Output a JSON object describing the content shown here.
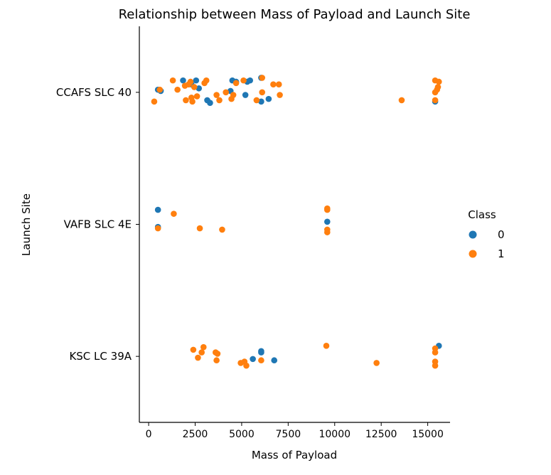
{
  "chart_data": {
    "type": "scatter",
    "title": "Relationship between Mass of Payload and Launch Site",
    "xlabel": "Mass of Payload",
    "ylabel": "Launch Site",
    "xlim": [
      -500,
      16200
    ],
    "x_ticks": [
      0,
      2500,
      5000,
      7500,
      10000,
      12500,
      15000
    ],
    "categories": [
      "CCAFS SLC 40",
      "VAFB SLC 4E",
      "KSC LC 39A"
    ],
    "grid": false,
    "legend": {
      "title": "Class",
      "placement": "center-right",
      "entries": [
        {
          "label": "0",
          "color": "#1f77b4"
        },
        {
          "label": "1",
          "color": "#ff7f0e"
        }
      ]
    },
    "series": [
      {
        "name": "0",
        "color": "#1f77b4",
        "points": [
          {
            "x": 500,
            "site": "CCAFS SLC 40",
            "jitter": 0.02
          },
          {
            "x": 650,
            "site": "CCAFS SLC 40",
            "jitter": 0.01
          },
          {
            "x": 1850,
            "site": "CCAFS SLC 40",
            "jitter": 0.09
          },
          {
            "x": 2300,
            "site": "CCAFS SLC 40",
            "jitter": 0.06
          },
          {
            "x": 2550,
            "site": "CCAFS SLC 40",
            "jitter": 0.09
          },
          {
            "x": 2700,
            "site": "CCAFS SLC 40",
            "jitter": 0.03
          },
          {
            "x": 3150,
            "site": "CCAFS SLC 40",
            "jitter": -0.06
          },
          {
            "x": 3300,
            "site": "CCAFS SLC 40",
            "jitter": -0.08
          },
          {
            "x": 4400,
            "site": "CCAFS SLC 40",
            "jitter": 0.01
          },
          {
            "x": 4500,
            "site": "CCAFS SLC 40",
            "jitter": 0.09
          },
          {
            "x": 4700,
            "site": "CCAFS SLC 40",
            "jitter": 0.08
          },
          {
            "x": 5200,
            "site": "CCAFS SLC 40",
            "jitter": -0.02
          },
          {
            "x": 5300,
            "site": "CCAFS SLC 40",
            "jitter": 0.08
          },
          {
            "x": 5450,
            "site": "CCAFS SLC 40",
            "jitter": 0.09
          },
          {
            "x": 6050,
            "site": "CCAFS SLC 40",
            "jitter": 0.11
          },
          {
            "x": 6050,
            "site": "CCAFS SLC 40",
            "jitter": -0.07
          },
          {
            "x": 6450,
            "site": "CCAFS SLC 40",
            "jitter": -0.05
          },
          {
            "x": 15400,
            "site": "CCAFS SLC 40",
            "jitter": -0.07
          },
          {
            "x": 500,
            "site": "VAFB SLC 4E",
            "jitter": 0.11
          },
          {
            "x": 500,
            "site": "VAFB SLC 4E",
            "jitter": -0.02
          },
          {
            "x": 9600,
            "site": "VAFB SLC 4E",
            "jitter": 0.02
          },
          {
            "x": 5600,
            "site": "KSC LC 39A",
            "jitter": -0.02
          },
          {
            "x": 6050,
            "site": "KSC LC 39A",
            "jitter": 0.04
          },
          {
            "x": 6050,
            "site": "KSC LC 39A",
            "jitter": 0.03
          },
          {
            "x": 6750,
            "site": "KSC LC 39A",
            "jitter": -0.03
          },
          {
            "x": 15600,
            "site": "KSC LC 39A",
            "jitter": 0.08
          }
        ]
      },
      {
        "name": "1",
        "color": "#ff7f0e",
        "points": [
          {
            "x": 300,
            "site": "CCAFS SLC 40",
            "jitter": -0.07
          },
          {
            "x": 600,
            "site": "CCAFS SLC 40",
            "jitter": 0.02
          },
          {
            "x": 1300,
            "site": "CCAFS SLC 40",
            "jitter": 0.09
          },
          {
            "x": 1550,
            "site": "CCAFS SLC 40",
            "jitter": 0.02
          },
          {
            "x": 1950,
            "site": "CCAFS SLC 40",
            "jitter": 0.05
          },
          {
            "x": 2000,
            "site": "CCAFS SLC 40",
            "jitter": -0.06
          },
          {
            "x": 2150,
            "site": "CCAFS SLC 40",
            "jitter": 0.06
          },
          {
            "x": 2250,
            "site": "CCAFS SLC 40",
            "jitter": 0.08
          },
          {
            "x": 2300,
            "site": "CCAFS SLC 40",
            "jitter": -0.04
          },
          {
            "x": 2350,
            "site": "CCAFS SLC 40",
            "jitter": -0.07
          },
          {
            "x": 2450,
            "site": "CCAFS SLC 40",
            "jitter": 0.04
          },
          {
            "x": 2600,
            "site": "CCAFS SLC 40",
            "jitter": -0.03
          },
          {
            "x": 3000,
            "site": "CCAFS SLC 40",
            "jitter": 0.07
          },
          {
            "x": 3100,
            "site": "CCAFS SLC 40",
            "jitter": 0.09
          },
          {
            "x": 3650,
            "site": "CCAFS SLC 40",
            "jitter": -0.02
          },
          {
            "x": 3800,
            "site": "CCAFS SLC 40",
            "jitter": -0.06
          },
          {
            "x": 4150,
            "site": "CCAFS SLC 40",
            "jitter": 0.0
          },
          {
            "x": 4450,
            "site": "CCAFS SLC 40",
            "jitter": -0.05
          },
          {
            "x": 4550,
            "site": "CCAFS SLC 40",
            "jitter": -0.02
          },
          {
            "x": 4700,
            "site": "CCAFS SLC 40",
            "jitter": 0.07
          },
          {
            "x": 5100,
            "site": "CCAFS SLC 40",
            "jitter": 0.09
          },
          {
            "x": 5800,
            "site": "CCAFS SLC 40",
            "jitter": -0.06
          },
          {
            "x": 6100,
            "site": "CCAFS SLC 40",
            "jitter": 0.0
          },
          {
            "x": 6100,
            "site": "CCAFS SLC 40",
            "jitter": 0.11
          },
          {
            "x": 6700,
            "site": "CCAFS SLC 40",
            "jitter": 0.06
          },
          {
            "x": 7000,
            "site": "CCAFS SLC 40",
            "jitter": 0.06
          },
          {
            "x": 7050,
            "site": "CCAFS SLC 40",
            "jitter": -0.02
          },
          {
            "x": 13600,
            "site": "CCAFS SLC 40",
            "jitter": -0.06
          },
          {
            "x": 15400,
            "site": "CCAFS SLC 40",
            "jitter": 0.09
          },
          {
            "x": 15400,
            "site": "CCAFS SLC 40",
            "jitter": 0.0
          },
          {
            "x": 15400,
            "site": "CCAFS SLC 40",
            "jitter": -0.06
          },
          {
            "x": 15500,
            "site": "CCAFS SLC 40",
            "jitter": 0.02
          },
          {
            "x": 15550,
            "site": "CCAFS SLC 40",
            "jitter": 0.04
          },
          {
            "x": 15600,
            "site": "CCAFS SLC 40",
            "jitter": 0.08
          },
          {
            "x": 1350,
            "site": "VAFB SLC 4E",
            "jitter": 0.08
          },
          {
            "x": 500,
            "site": "VAFB SLC 4E",
            "jitter": -0.03
          },
          {
            "x": 2750,
            "site": "VAFB SLC 4E",
            "jitter": -0.03
          },
          {
            "x": 3950,
            "site": "VAFB SLC 4E",
            "jitter": -0.04
          },
          {
            "x": 9600,
            "site": "VAFB SLC 4E",
            "jitter": 0.11
          },
          {
            "x": 9600,
            "site": "VAFB SLC 4E",
            "jitter": 0.12
          },
          {
            "x": 9600,
            "site": "VAFB SLC 4E",
            "jitter": -0.04
          },
          {
            "x": 9600,
            "site": "VAFB SLC 4E",
            "jitter": -0.06
          },
          {
            "x": 2400,
            "site": "KSC LC 39A",
            "jitter": 0.05
          },
          {
            "x": 2650,
            "site": "KSC LC 39A",
            "jitter": -0.01
          },
          {
            "x": 2850,
            "site": "KSC LC 39A",
            "jitter": 0.03
          },
          {
            "x": 2950,
            "site": "KSC LC 39A",
            "jitter": 0.07
          },
          {
            "x": 3600,
            "site": "KSC LC 39A",
            "jitter": 0.03
          },
          {
            "x": 3650,
            "site": "KSC LC 39A",
            "jitter": -0.03
          },
          {
            "x": 3700,
            "site": "KSC LC 39A",
            "jitter": 0.02
          },
          {
            "x": 4950,
            "site": "KSC LC 39A",
            "jitter": -0.05
          },
          {
            "x": 5150,
            "site": "KSC LC 39A",
            "jitter": -0.04
          },
          {
            "x": 5250,
            "site": "KSC LC 39A",
            "jitter": -0.07
          },
          {
            "x": 6050,
            "site": "KSC LC 39A",
            "jitter": -0.03
          },
          {
            "x": 9550,
            "site": "KSC LC 39A",
            "jitter": 0.08
          },
          {
            "x": 12250,
            "site": "KSC LC 39A",
            "jitter": -0.05
          },
          {
            "x": 15400,
            "site": "KSC LC 39A",
            "jitter": 0.06
          },
          {
            "x": 15400,
            "site": "KSC LC 39A",
            "jitter": 0.03
          },
          {
            "x": 15400,
            "site": "KSC LC 39A",
            "jitter": -0.04
          },
          {
            "x": 15400,
            "site": "KSC LC 39A",
            "jitter": -0.07
          }
        ]
      }
    ]
  }
}
